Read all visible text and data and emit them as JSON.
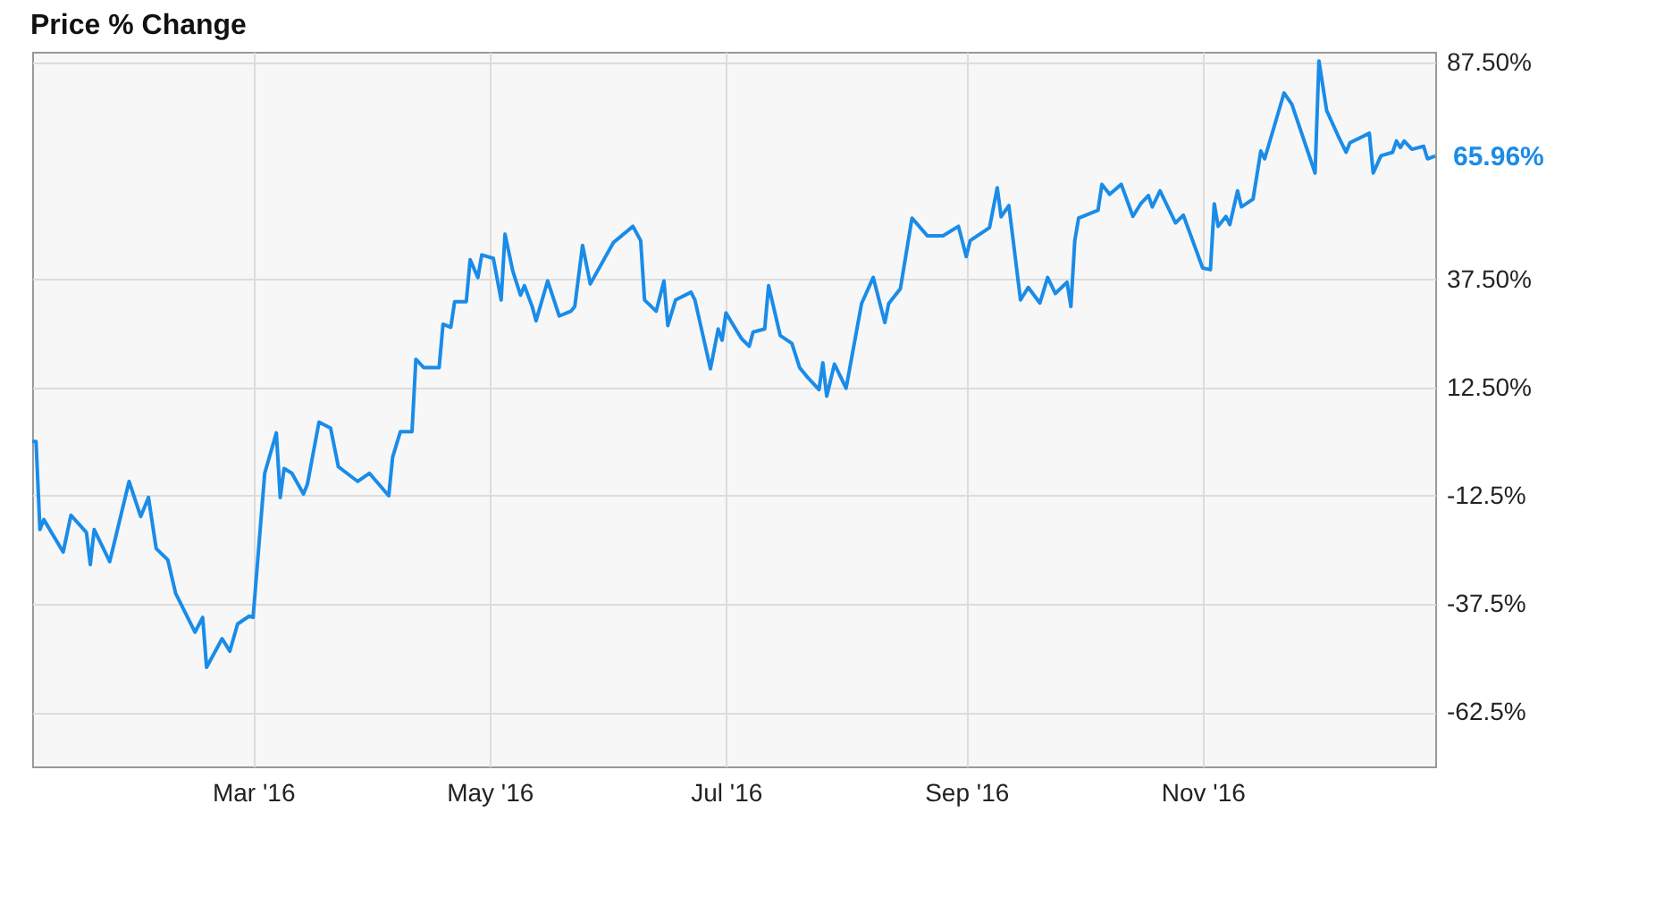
{
  "chart_data": {
    "type": "line",
    "title": "Price % Change",
    "x": [
      "2016-01-04",
      "2016-01-05",
      "2016-01-06",
      "2016-01-07",
      "2016-01-12",
      "2016-01-14",
      "2016-01-18",
      "2016-01-19",
      "2016-01-20",
      "2016-01-24",
      "2016-01-29",
      "2016-02-01",
      "2016-02-03",
      "2016-02-05",
      "2016-02-08",
      "2016-02-10",
      "2016-02-15",
      "2016-02-17",
      "2016-02-18",
      "2016-02-22",
      "2016-02-24",
      "2016-02-26",
      "2016-02-29",
      "2016-03-01",
      "2016-03-04",
      "2016-03-07",
      "2016-03-08",
      "2016-03-09",
      "2016-03-11",
      "2016-03-14",
      "2016-03-15",
      "2016-03-18",
      "2016-03-21",
      "2016-03-23",
      "2016-03-28",
      "2016-03-31",
      "2016-04-05",
      "2016-04-06",
      "2016-04-08",
      "2016-04-11",
      "2016-04-12",
      "2016-04-14",
      "2016-04-18",
      "2016-04-19",
      "2016-04-21",
      "2016-04-22",
      "2016-04-25",
      "2016-04-26",
      "2016-04-28",
      "2016-04-29",
      "2016-05-02",
      "2016-05-04",
      "2016-05-05",
      "2016-05-07",
      "2016-05-09",
      "2016-05-10",
      "2016-05-12",
      "2016-05-13",
      "2016-05-16",
      "2016-05-19",
      "2016-05-22",
      "2016-05-23",
      "2016-05-25",
      "2016-05-27",
      "2016-06-02",
      "2016-06-07",
      "2016-06-09",
      "2016-06-10",
      "2016-06-13",
      "2016-06-15",
      "2016-06-16",
      "2016-06-18",
      "2016-06-22",
      "2016-06-23",
      "2016-06-27",
      "2016-06-29",
      "2016-06-30",
      "2016-07-01",
      "2016-07-05",
      "2016-07-07",
      "2016-07-08",
      "2016-07-11",
      "2016-07-12",
      "2016-07-15",
      "2016-07-18",
      "2016-07-20",
      "2016-07-22",
      "2016-07-25",
      "2016-07-26",
      "2016-07-27",
      "2016-07-29",
      "2016-08-01",
      "2016-08-05",
      "2016-08-08",
      "2016-08-11",
      "2016-08-12",
      "2016-08-15",
      "2016-08-18",
      "2016-08-22",
      "2016-08-26",
      "2016-08-30",
      "2016-09-01",
      "2016-09-02",
      "2016-09-07",
      "2016-09-09",
      "2016-09-10",
      "2016-09-12",
      "2016-09-15",
      "2016-09-17",
      "2016-09-20",
      "2016-09-22",
      "2016-09-24",
      "2016-09-27",
      "2016-09-28",
      "2016-09-29",
      "2016-09-30",
      "2016-10-05",
      "2016-10-06",
      "2016-10-08",
      "2016-10-11",
      "2016-10-14",
      "2016-10-16",
      "2016-10-18",
      "2016-10-19",
      "2016-10-21",
      "2016-10-25",
      "2016-10-27",
      "2016-11-01",
      "2016-11-03",
      "2016-11-04",
      "2016-11-05",
      "2016-11-07",
      "2016-11-08",
      "2016-11-10",
      "2016-11-11",
      "2016-11-14",
      "2016-11-16",
      "2016-11-17",
      "2016-11-22",
      "2016-11-24",
      "2016-11-30",
      "2016-12-01",
      "2016-12-03",
      "2016-12-06",
      "2016-12-08",
      "2016-12-09",
      "2016-12-14",
      "2016-12-15",
      "2016-12-17",
      "2016-12-20",
      "2016-12-21",
      "2016-12-22",
      "2016-12-23",
      "2016-12-25",
      "2016-12-28",
      "2016-12-29",
      "2016-12-31"
    ],
    "series": [
      {
        "color": "#1a8ce8",
        "values": [
          0,
          0,
          -20.3,
          -18,
          -25.5,
          -17,
          -21,
          -28.4,
          -20.3,
          -27.7,
          -9.2,
          -17.3,
          -12.9,
          -24.7,
          -27.3,
          -35,
          -44,
          -40.6,
          -52.1,
          -45.5,
          -48.4,
          -42.1,
          -40.3,
          -40.6,
          -7.3,
          2,
          -12.9,
          -6.2,
          -7.3,
          -12.1,
          -9.9,
          4.5,
          3.1,
          -5.8,
          -9.2,
          -7.3,
          -12.5,
          -3.6,
          2.3,
          2.3,
          19,
          17.1,
          17.1,
          27.1,
          26.4,
          32.3,
          32.3,
          42,
          37.9,
          43.1,
          42.3,
          32.7,
          47.9,
          39.4,
          33.8,
          36,
          31.2,
          27.9,
          37.1,
          29,
          30.1,
          31.2,
          45.3,
          36.4,
          46,
          49.7,
          46.4,
          32.7,
          30.1,
          37.1,
          26.8,
          32.7,
          34.5,
          32.7,
          16.8,
          26,
          23.4,
          29.7,
          23.8,
          22,
          25.3,
          26,
          36,
          24.5,
          22.7,
          17.1,
          14.9,
          12,
          18.2,
          10.5,
          17.9,
          12.3,
          31.9,
          37.9,
          27.5,
          31.9,
          35.3,
          51.6,
          47.5,
          47.5,
          49.7,
          42.7,
          46.4,
          49.4,
          58.6,
          51.9,
          54.5,
          32.7,
          35.6,
          32,
          37.9,
          34.2,
          36.8,
          31.2,
          46.4,
          51.6,
          53.4,
          59.4,
          57.1,
          59.4,
          52,
          54.9,
          56.8,
          54.2,
          57.9,
          50.5,
          52.3,
          40.1,
          39.7,
          54.9,
          49.7,
          52,
          50.1,
          57.9,
          54.2,
          56,
          67.1,
          65.3,
          80.5,
          77.9,
          62,
          87.9,
          76.4,
          70.5,
          66.8,
          69,
          71.2,
          62,
          66,
          66.8,
          69.4,
          67.9,
          69.4,
          67.5,
          68.2,
          65.3,
          65.96
        ]
      }
    ],
    "xlim": [
      "2016-01-04",
      "2016-12-31"
    ],
    "xticks": [
      {
        "value": "2016-03-01",
        "label": "Mar '16"
      },
      {
        "value": "2016-05-01",
        "label": "May '16"
      },
      {
        "value": "2016-07-01",
        "label": "Jul '16"
      },
      {
        "value": "2016-09-01",
        "label": "Sep '16"
      },
      {
        "value": "2016-11-01",
        "label": "Nov '16"
      }
    ],
    "ylim": [
      -75,
      90
    ],
    "yticks": [
      {
        "value": -62.5,
        "label": "-62.5%"
      },
      {
        "value": -37.5,
        "label": "-37.5%"
      },
      {
        "value": -12.5,
        "label": "-12.5%"
      },
      {
        "value": 12.5,
        "label": "12.50%"
      },
      {
        "value": 37.5,
        "label": "37.50%"
      },
      {
        "value": 87.5,
        "label": "87.50%"
      }
    ],
    "annotations": [
      {
        "text": "65.96%",
        "x": "2016-12-31",
        "y": 65.96
      }
    ],
    "grid": true,
    "legend": false,
    "marker": "none",
    "line_style": "solid"
  }
}
